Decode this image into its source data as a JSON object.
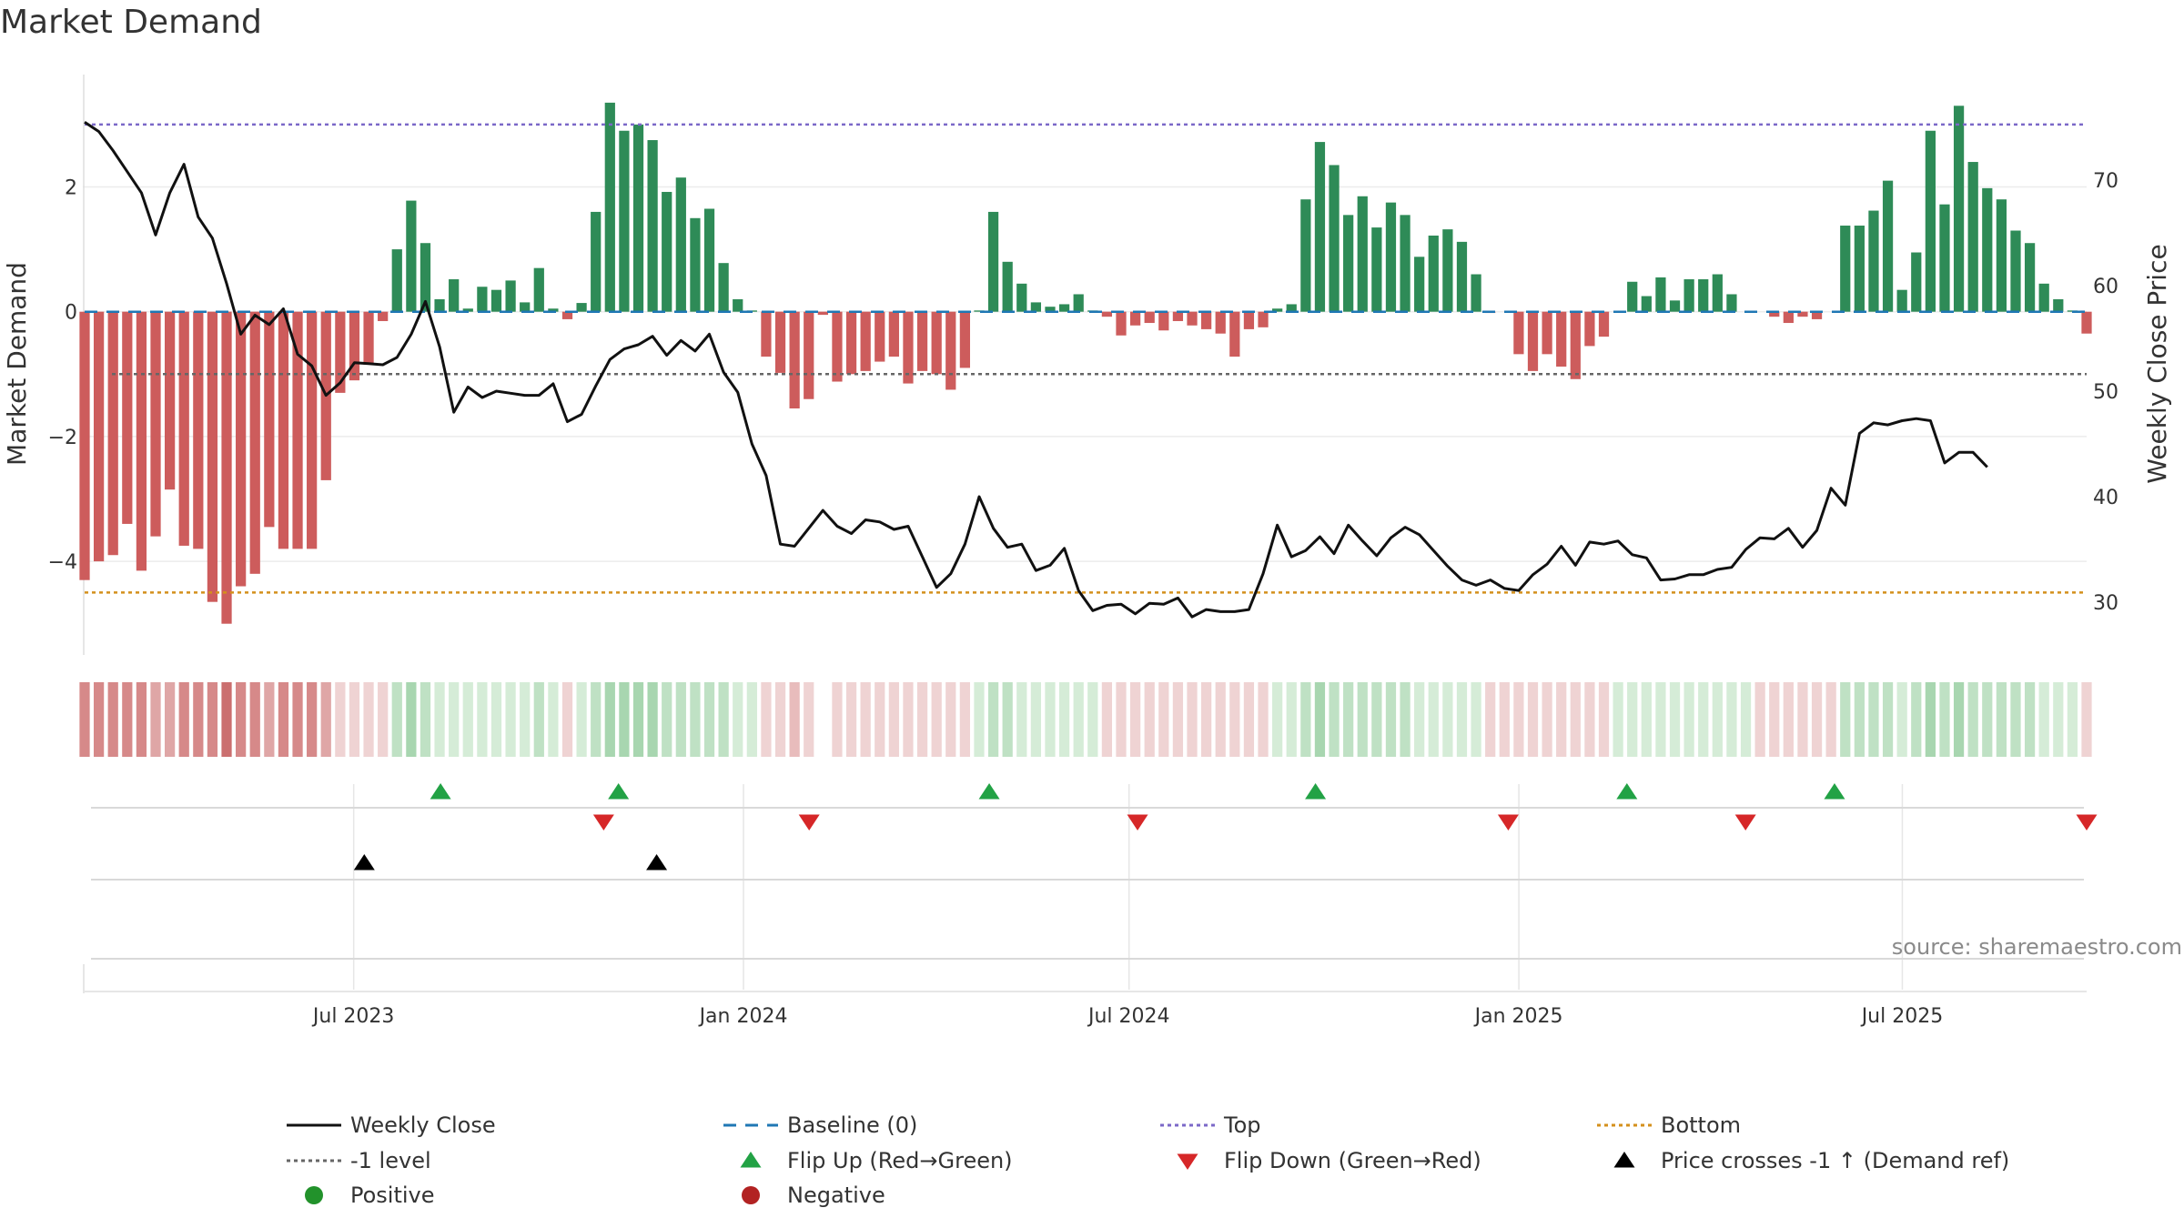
{
  "title": "Market Demand",
  "source": "source: sharemaestro.com",
  "colors": {
    "positive_bar": "#2e8b57",
    "negative_bar": "#cd5c5c",
    "close_line": "#111111",
    "baseline": "#1f77b4",
    "top": "#7b68c8",
    "bottom": "#d4901c",
    "minus_one": "#666666",
    "flip_up": "#22a245",
    "flip_down": "#d62728",
    "cross": "#000000",
    "positive_dot": "#22922b",
    "negative_dot": "#b22222"
  },
  "chart_data": {
    "type": "bar",
    "title": "Market Demand",
    "ylabel_left": "Market Demand",
    "ylabel_right": "Weekly Close Price",
    "ylim_left": [
      -5.5,
      3.8
    ],
    "ylim_right": [
      25,
      80
    ],
    "yticks_left": [
      {
        "value": 2,
        "label": "2"
      },
      {
        "value": 0,
        "label": "0"
      },
      {
        "value": -2,
        "label": "−2"
      },
      {
        "value": -4,
        "label": "−4"
      }
    ],
    "yticks_right": [
      {
        "value": 70,
        "label": "70"
      },
      {
        "value": 60,
        "label": "60"
      },
      {
        "value": 50,
        "label": "50"
      },
      {
        "value": 40,
        "label": "40"
      },
      {
        "value": 30,
        "label": "30"
      }
    ],
    "x_start": "2023-02-24",
    "x_end": "2025-09-26",
    "xticks": [
      {
        "date": "2023-07-01",
        "label": "Jul 2023"
      },
      {
        "date": "2024-01-01",
        "label": "Jan 2024"
      },
      {
        "date": "2024-07-01",
        "label": "Jul 2024"
      },
      {
        "date": "2025-01-01",
        "label": "Jan 2025"
      },
      {
        "date": "2025-07-01",
        "label": "Jul 2025"
      }
    ],
    "reference_lines": {
      "top": 3.0,
      "bottom": -4.5,
      "minus_one": -1.0,
      "baseline": 0
    },
    "demand": [
      -4.3,
      -4.0,
      -3.9,
      -3.4,
      -4.15,
      -3.6,
      -2.85,
      -3.75,
      -3.8,
      -4.65,
      -5.0,
      -4.4,
      -4.2,
      -3.45,
      -3.8,
      -3.8,
      -3.8,
      -2.7,
      -1.3,
      -1.1,
      -0.85,
      -0.15,
      1.0,
      1.78,
      1.1,
      0.2,
      0.52,
      0.05,
      0.4,
      0.35,
      0.5,
      0.15,
      0.7,
      0.05,
      -0.12,
      0.14,
      1.6,
      3.35,
      2.9,
      3.0,
      2.75,
      1.92,
      2.15,
      1.5,
      1.65,
      0.78,
      0.2,
      0.02,
      -0.72,
      -0.98,
      -1.55,
      -1.4,
      -0.05,
      -1.12,
      -1.0,
      -0.95,
      -0.8,
      -0.72,
      -1.15,
      -0.95,
      -1.0,
      -1.25,
      -0.9,
      0.02,
      1.6,
      0.8,
      0.45,
      0.15,
      0.08,
      0.12,
      0.28,
      0.02,
      -0.08,
      -0.38,
      -0.22,
      -0.18,
      -0.3,
      -0.15,
      -0.22,
      -0.28,
      -0.35,
      -0.72,
      -0.28,
      -0.25,
      0.05,
      0.12,
      1.8,
      2.72,
      2.35,
      1.55,
      1.85,
      1.35,
      1.75,
      1.55,
      0.88,
      1.22,
      1.32,
      1.12,
      0.6,
      -0.02,
      0.0,
      -0.68,
      -0.95,
      -0.68,
      -0.88,
      -1.08,
      -0.55,
      -0.4,
      0.0,
      0.48,
      0.25,
      0.55,
      0.18,
      0.52,
      0.52,
      0.6,
      0.28,
      0.0,
      0.0,
      -0.08,
      -0.18,
      -0.08,
      -0.12,
      0.0,
      1.38,
      1.38,
      1.62,
      2.1,
      0.35,
      0.95,
      2.9,
      1.72,
      3.3,
      2.4,
      1.98,
      1.8,
      1.3,
      1.1,
      0.45,
      0.2,
      0.02,
      -0.35
    ],
    "close": [
      75.5,
      74.6,
      72.8,
      70.8,
      68.8,
      64.8,
      68.8,
      71.5,
      66.5,
      64.5,
      60.2,
      55.4,
      57.2,
      56.3,
      57.8,
      53.5,
      52.4,
      49.6,
      50.8,
      52.7,
      52.6,
      52.5,
      53.2,
      55.4,
      58.5,
      54.2,
      48.0,
      50.4,
      49.4,
      50.0,
      49.8,
      49.6,
      49.6,
      50.7,
      47.1,
      47.8,
      50.5,
      53.0,
      54.0,
      54.4,
      55.2,
      53.4,
      54.8,
      53.8,
      55.4,
      51.8,
      49.9,
      45.0,
      42.0,
      35.5,
      35.3,
      37.0,
      38.7,
      37.2,
      36.5,
      37.8,
      37.6,
      36.9,
      37.2,
      34.3,
      31.4,
      32.7,
      35.5,
      40.0,
      37.0,
      35.2,
      35.5,
      33.0,
      33.5,
      35.1,
      31.1,
      29.2,
      29.7,
      29.8,
      28.9,
      29.9,
      29.8,
      30.4,
      28.6,
      29.3,
      29.1,
      29.1,
      29.3,
      32.7,
      37.3,
      34.3,
      34.9,
      36.2,
      34.6,
      37.3,
      35.8,
      34.4,
      36.1,
      37.1,
      36.4,
      34.9,
      33.4,
      32.1,
      31.6,
      32.1,
      31.3,
      31.1,
      32.6,
      33.6,
      35.3,
      33.5,
      35.7,
      35.5,
      35.8,
      34.5,
      34.2,
      32.1,
      32.2,
      32.6,
      32.6,
      33.1,
      33.3,
      35.0,
      36.1,
      36.0,
      37.0,
      35.2,
      36.8,
      40.8,
      39.2,
      46.0,
      47.0,
      46.8,
      47.2,
      47.4,
      47.2,
      43.2,
      44.2,
      44.2,
      42.8
    ],
    "strength_strip": [
      -4,
      -4,
      -4,
      -4,
      -4,
      -3,
      -3,
      -4,
      -4,
      -4,
      -5,
      -4,
      -4,
      -3,
      -4,
      -4,
      -4,
      -3,
      -1,
      -1,
      -1,
      -1,
      2,
      3,
      2,
      1,
      1,
      1,
      1,
      1,
      1,
      1,
      2,
      1,
      -1,
      1,
      2,
      3,
      3,
      3,
      3,
      2,
      2,
      2,
      2,
      2,
      1,
      1,
      -1,
      -1,
      -2,
      -1,
      null,
      -1,
      -1,
      -1,
      -1,
      -1,
      -1,
      -1,
      -1,
      -1,
      -1,
      1,
      2,
      2,
      1,
      1,
      1,
      1,
      1,
      1,
      -1,
      -1,
      -1,
      -1,
      -1,
      -1,
      -1,
      -1,
      -1,
      -1,
      -1,
      -1,
      1,
      1,
      2,
      3,
      2,
      2,
      2,
      2,
      2,
      2,
      1,
      1,
      1,
      1,
      1,
      -1,
      -1,
      -1,
      -1,
      -1,
      -1,
      -1,
      -1,
      -1,
      1,
      1,
      1,
      1,
      1,
      1,
      1,
      1,
      1,
      1,
      -1,
      -1,
      -1,
      -1,
      -1,
      -1,
      2,
      2,
      2,
      2,
      1,
      2,
      3,
      2,
      3,
      2,
      2,
      2,
      2,
      2,
      1,
      1,
      1,
      -1
    ],
    "flip_up_dates": [
      "2023-08-11",
      "2023-11-03",
      "2024-04-26",
      "2024-09-27",
      "2025-02-21",
      "2025-05-30"
    ],
    "flip_down_dates": [
      "2023-10-27",
      "2024-02-01",
      "2024-07-05",
      "2024-12-27",
      "2025-04-18",
      "2025-09-26"
    ],
    "price_cross_dates": [
      "2023-07-06",
      "2023-11-21"
    ],
    "legend": [
      {
        "label": "Weekly Close",
        "kind": "line"
      },
      {
        "label": "Baseline (0)",
        "kind": "dash"
      },
      {
        "label": "Top",
        "kind": "dotted-top"
      },
      {
        "label": "Bottom",
        "kind": "dotted-bottom"
      },
      {
        "label": "-1 level",
        "kind": "dotted-minus"
      },
      {
        "label": "Flip Up (Red→Green)",
        "kind": "tri-up"
      },
      {
        "label": "Flip Down (Green→Red)",
        "kind": "tri-down"
      },
      {
        "label": "Price crosses -1 ↑ (Demand ref)",
        "kind": "tri-cross"
      },
      {
        "label": "Positive",
        "kind": "dot-pos"
      },
      {
        "label": "Negative",
        "kind": "dot-neg"
      }
    ]
  }
}
